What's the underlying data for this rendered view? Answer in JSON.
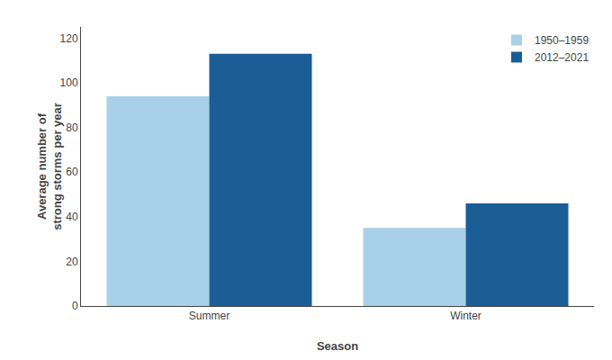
{
  "chart_data": {
    "type": "bar",
    "categories": [
      "Summer",
      "Winter"
    ],
    "series": [
      {
        "name": "1950–1959",
        "color": "#a8d0e8",
        "values": [
          94,
          35
        ]
      },
      {
        "name": "2012–2021",
        "color": "#1b5e96",
        "values": [
          113,
          46
        ]
      }
    ],
    "xlabel": "Season",
    "ylabel": "Average number of\nstrong storms per year",
    "ylim": [
      0,
      125
    ],
    "yticks": [
      0,
      20,
      40,
      60,
      80,
      100,
      120
    ],
    "grid": false,
    "legend": "upper right"
  }
}
